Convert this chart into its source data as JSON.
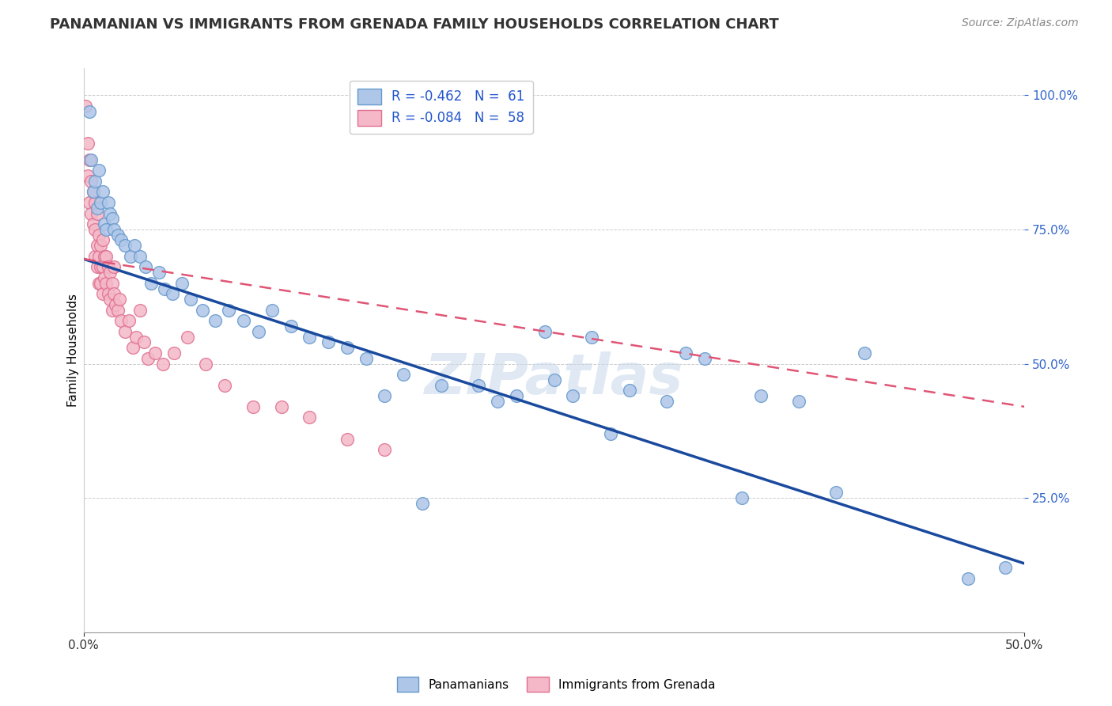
{
  "title": "PANAMANIAN VS IMMIGRANTS FROM GRENADA FAMILY HOUSEHOLDS CORRELATION CHART",
  "source": "Source: ZipAtlas.com",
  "ylabel": "Family Households",
  "xlim": [
    0.0,
    0.5
  ],
  "ylim": [
    0.0,
    1.05
  ],
  "blue_color": "#aec6e8",
  "blue_edge": "#6699cc",
  "pink_color": "#f4b8c8",
  "pink_edge": "#e07090",
  "blue_line_color": "#1a4a9e",
  "pink_line_color": "#e05575",
  "watermark": "ZIPatlas",
  "blue_scatter_x": [
    0.003,
    0.004,
    0.005,
    0.006,
    0.007,
    0.008,
    0.009,
    0.01,
    0.011,
    0.012,
    0.013,
    0.014,
    0.015,
    0.016,
    0.018,
    0.02,
    0.022,
    0.025,
    0.027,
    0.03,
    0.033,
    0.036,
    0.04,
    0.043,
    0.047,
    0.052,
    0.057,
    0.063,
    0.07,
    0.077,
    0.085,
    0.093,
    0.1,
    0.11,
    0.12,
    0.13,
    0.14,
    0.15,
    0.17,
    0.19,
    0.21,
    0.23,
    0.25,
    0.27,
    0.29,
    0.31,
    0.33,
    0.36,
    0.38,
    0.4,
    0.415,
    0.28,
    0.32,
    0.245,
    0.26,
    0.18,
    0.22,
    0.16,
    0.35,
    0.47,
    0.49
  ],
  "blue_scatter_y": [
    0.97,
    0.88,
    0.82,
    0.84,
    0.79,
    0.86,
    0.8,
    0.82,
    0.76,
    0.75,
    0.8,
    0.78,
    0.77,
    0.75,
    0.74,
    0.73,
    0.72,
    0.7,
    0.72,
    0.7,
    0.68,
    0.65,
    0.67,
    0.64,
    0.63,
    0.65,
    0.62,
    0.6,
    0.58,
    0.6,
    0.58,
    0.56,
    0.6,
    0.57,
    0.55,
    0.54,
    0.53,
    0.51,
    0.48,
    0.46,
    0.46,
    0.44,
    0.47,
    0.55,
    0.45,
    0.43,
    0.51,
    0.44,
    0.43,
    0.26,
    0.52,
    0.37,
    0.52,
    0.56,
    0.44,
    0.24,
    0.43,
    0.44,
    0.25,
    0.1,
    0.12
  ],
  "pink_scatter_x": [
    0.001,
    0.002,
    0.002,
    0.003,
    0.003,
    0.004,
    0.004,
    0.005,
    0.005,
    0.006,
    0.006,
    0.006,
    0.007,
    0.007,
    0.007,
    0.008,
    0.008,
    0.008,
    0.009,
    0.009,
    0.009,
    0.01,
    0.01,
    0.01,
    0.011,
    0.011,
    0.012,
    0.012,
    0.013,
    0.013,
    0.014,
    0.014,
    0.015,
    0.015,
    0.016,
    0.016,
    0.017,
    0.018,
    0.019,
    0.02,
    0.022,
    0.024,
    0.026,
    0.028,
    0.03,
    0.032,
    0.034,
    0.038,
    0.042,
    0.048,
    0.055,
    0.065,
    0.075,
    0.09,
    0.105,
    0.12,
    0.14,
    0.16
  ],
  "pink_scatter_y": [
    0.98,
    0.91,
    0.85,
    0.8,
    0.88,
    0.78,
    0.84,
    0.76,
    0.82,
    0.8,
    0.75,
    0.7,
    0.78,
    0.72,
    0.68,
    0.74,
    0.7,
    0.65,
    0.72,
    0.68,
    0.65,
    0.73,
    0.68,
    0.63,
    0.7,
    0.66,
    0.7,
    0.65,
    0.68,
    0.63,
    0.67,
    0.62,
    0.65,
    0.6,
    0.68,
    0.63,
    0.61,
    0.6,
    0.62,
    0.58,
    0.56,
    0.58,
    0.53,
    0.55,
    0.6,
    0.54,
    0.51,
    0.52,
    0.5,
    0.52,
    0.55,
    0.5,
    0.46,
    0.42,
    0.42,
    0.4,
    0.36,
    0.34
  ],
  "blue_line_x0": 0.0,
  "blue_line_x1": 0.5,
  "blue_line_y0": 0.695,
  "blue_line_y1": 0.128,
  "pink_line_x0": 0.0,
  "pink_line_x1": 0.5,
  "pink_line_y0": 0.695,
  "pink_line_y1": 0.42,
  "title_fontsize": 13,
  "axis_label_fontsize": 11,
  "tick_fontsize": 11,
  "source_fontsize": 10,
  "legend_fontsize": 12
}
